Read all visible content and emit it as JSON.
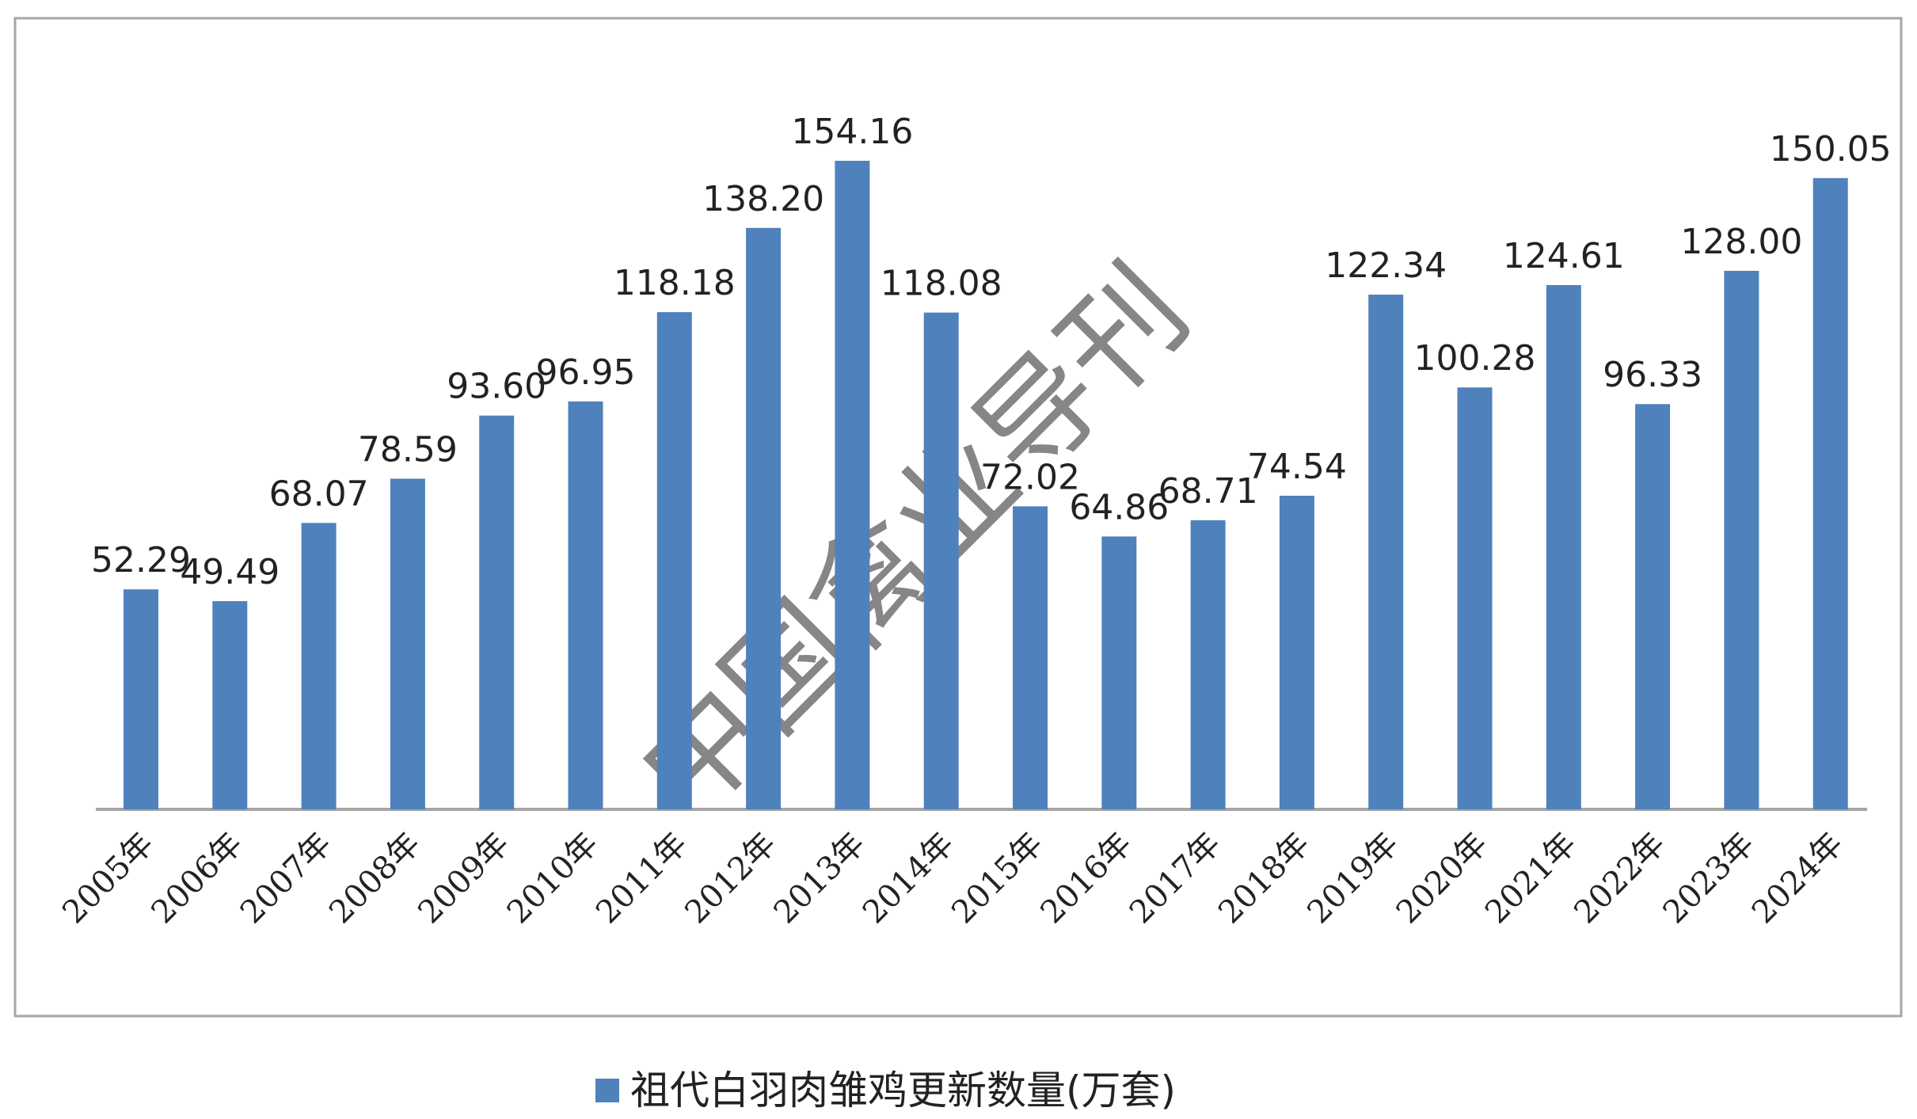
{
  "chart_data": {
    "type": "bar",
    "categories": [
      "2005年",
      "2006年",
      "2007年",
      "2008年",
      "2009年",
      "2010年",
      "2011年",
      "2012年",
      "2013年",
      "2014年",
      "2015年",
      "2016年",
      "2017年",
      "2018年",
      "2019年",
      "2020年",
      "2021年",
      "2022年",
      "2023年",
      "2024年"
    ],
    "series": [
      {
        "name": "祖代白羽肉雏鸡更新数量(万套)",
        "color": "#4f81bd",
        "values": [
          52.29,
          49.49,
          68.07,
          78.59,
          93.6,
          96.95,
          118.18,
          138.2,
          154.16,
          118.08,
          72.02,
          64.86,
          68.71,
          74.54,
          122.34,
          100.28,
          124.61,
          96.33,
          128,
          150.05
        ],
        "value_labels": [
          "52.29",
          "49.49",
          "68.07",
          "78.59",
          "93.60",
          "96.95",
          "118.18",
          "138.20",
          "154.16",
          "118.08",
          "72.02",
          "64.86",
          "68.71",
          "74.54",
          "122.34",
          "100.28",
          "124.61",
          "96.33",
          "128.00",
          "150.05"
        ]
      }
    ],
    "legend": "bottom",
    "watermark": "中国禽业导刊"
  }
}
